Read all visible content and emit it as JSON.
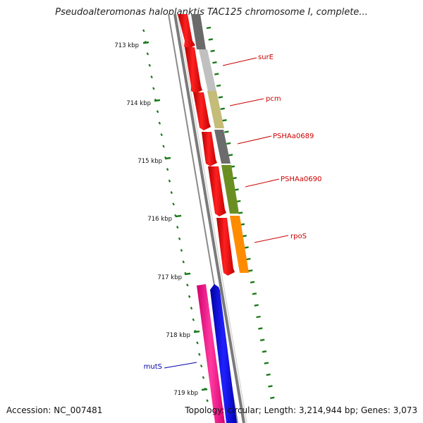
{
  "title": "Pseudoalteromonas haloplanktis TAC125 chromosome I, complete...",
  "accession": "Accession: NC_007481",
  "topology": "Topology: circular; Length: 3,214,944 bp; Genes: 3,073",
  "ticks": [
    "713 kbp",
    "714 kbp",
    "715 kbp",
    "716 kbp",
    "717 kbp",
    "718 kbp",
    "719 kbp"
  ],
  "genes": [
    {
      "label": "surE",
      "color": "#cc0000"
    },
    {
      "label": "pcm",
      "color": "#cc0000"
    },
    {
      "label": "PSHAa0689",
      "color": "#cc0000"
    },
    {
      "label": "PSHAa0690",
      "color": "#cc0000"
    },
    {
      "label": "rpoS",
      "color": "#cc0000"
    },
    {
      "label": "mutS",
      "color": "#0000aa"
    }
  ],
  "colors": {
    "cds": "#ff0000",
    "cds_reverse": "#0000ff",
    "cds_mutS": "#ff1493",
    "tick": "#1a7a1a",
    "backbone": "#7a7a7a",
    "surE": "#bdbdbd",
    "pcm": "#c8c07a",
    "PSHAa0689": "#6e6e6e",
    "PSHAa0690": "#6b8e23",
    "rpoS": "#ff8c00",
    "top": "#5a5a5a"
  }
}
